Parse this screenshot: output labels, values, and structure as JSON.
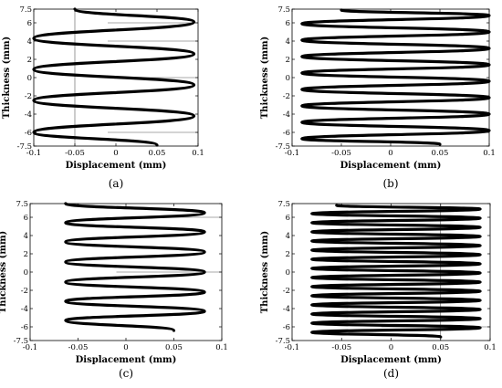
{
  "chart_data": [
    {
      "type": "line",
      "panel_label": "(a)",
      "xlabel": "Displacement (mm)",
      "ylabel": "Thickness (mm)",
      "xlim": [
        -0.1,
        0.1
      ],
      "ylim": [
        -7.5,
        7.5
      ],
      "xticks": [
        "-0.1",
        "-0.05",
        "0",
        "0.05",
        "0.1"
      ],
      "yticks": [
        "-7.5",
        "-6",
        "-4",
        "-2",
        "0",
        "2",
        "4",
        "6",
        "7.5"
      ],
      "grid": false,
      "guide_vertical_x": [
        -0.05
      ],
      "guide_horizontal_y": [
        -6,
        0,
        4,
        6
      ],
      "series": [
        {
          "x": [
            -0.05,
            0.095,
            -0.1,
            0.095,
            -0.1,
            0.095,
            -0.1,
            0.095,
            -0.1,
            0.05
          ],
          "y": [
            7.5,
            6.1,
            4.3,
            2.6,
            0.9,
            -0.8,
            -2.5,
            -4.2,
            -6.0,
            -7.4
          ]
        }
      ]
    },
    {
      "type": "line",
      "panel_label": "(b)",
      "xlabel": "Displacement (mm)",
      "ylabel": "Thickness (mm)",
      "xlim": [
        -0.1,
        0.1
      ],
      "ylim": [
        -7.5,
        7.5
      ],
      "xticks": [
        "-0.1",
        "-0.05",
        "0",
        "0.05",
        "0.1"
      ],
      "yticks": [
        "-7.5",
        "-6",
        "-4",
        "-2",
        "0",
        "2",
        "4",
        "6",
        "7.5"
      ],
      "grid": false,
      "guide_vertical_x": [],
      "guide_horizontal_y": [],
      "series": [
        {
          "x": [
            -0.05,
            0.1,
            -0.09,
            0.1,
            -0.09,
            0.1,
            -0.09,
            0.1,
            -0.09,
            0.1,
            -0.09,
            0.1,
            -0.09,
            0.1,
            -0.09,
            0.1,
            -0.09,
            0.05
          ],
          "y": [
            7.4,
            6.8,
            5.9,
            5.0,
            4.1,
            3.2,
            2.3,
            1.4,
            0.5,
            -0.4,
            -1.3,
            -2.2,
            -3.1,
            -4.0,
            -4.9,
            -5.8,
            -6.7,
            -7.3
          ]
        }
      ]
    },
    {
      "type": "line",
      "panel_label": "(c)",
      "xlabel": "Displacement (mm)",
      "ylabel": "Thickness (mm)",
      "xlim": [
        -0.1,
        0.1
      ],
      "ylim": [
        -7.5,
        7.5
      ],
      "xticks": [
        "-0.1",
        "-0.05",
        "0",
        "0.05",
        "0.1"
      ],
      "yticks": [
        "-7.5",
        "-6",
        "-4",
        "-2",
        "0",
        "2",
        "4",
        "6",
        "7.5"
      ],
      "grid": false,
      "guide_vertical_x": [],
      "guide_horizontal_y": [
        0,
        6
      ],
      "series": [
        {
          "x": [
            -0.063,
            0.082,
            -0.063,
            0.082,
            -0.063,
            0.082,
            -0.063,
            0.082,
            -0.063,
            0.082,
            -0.063,
            0.082,
            -0.063,
            0.05
          ],
          "y": [
            7.5,
            6.5,
            5.4,
            4.4,
            3.3,
            2.2,
            1.1,
            0.0,
            -1.1,
            -2.2,
            -3.2,
            -4.3,
            -5.3,
            -6.4
          ]
        }
      ]
    },
    {
      "type": "line",
      "panel_label": "(d)",
      "xlabel": "Displacement (mm)",
      "ylabel": "Thickness (mm)",
      "xlim": [
        -0.1,
        0.1
      ],
      "ylim": [
        -7.5,
        7.5
      ],
      "xticks": [
        "-0.1",
        "-0.05",
        "0",
        "0.05",
        "0.1"
      ],
      "yticks": [
        "-7.5",
        "-6",
        "-4",
        "-2",
        "0",
        "2",
        "4",
        "6",
        "7.5"
      ],
      "grid": false,
      "guide_vertical_x": [
        0.05
      ],
      "guide_horizontal_y": [
        -6
      ],
      "series": [
        {
          "x": [
            -0.055,
            0.09,
            -0.08,
            0.09,
            -0.08,
            0.09,
            -0.08,
            0.09,
            -0.08,
            0.09,
            -0.08,
            0.09,
            -0.08,
            0.09,
            -0.08,
            0.09,
            -0.08,
            0.09,
            -0.08,
            0.09,
            -0.08,
            0.09,
            -0.08,
            0.09,
            -0.08,
            0.09,
            -0.08,
            0.09,
            -0.08,
            0.05
          ],
          "y": [
            7.3,
            6.9,
            6.4,
            5.9,
            5.4,
            4.9,
            4.4,
            3.9,
            3.4,
            2.9,
            2.4,
            1.9,
            1.4,
            0.9,
            0.4,
            -0.1,
            -0.6,
            -1.1,
            -1.6,
            -2.1,
            -2.6,
            -3.1,
            -3.6,
            -4.1,
            -4.6,
            -5.1,
            -5.6,
            -6.1,
            -6.6,
            -7.1
          ]
        }
      ]
    }
  ]
}
